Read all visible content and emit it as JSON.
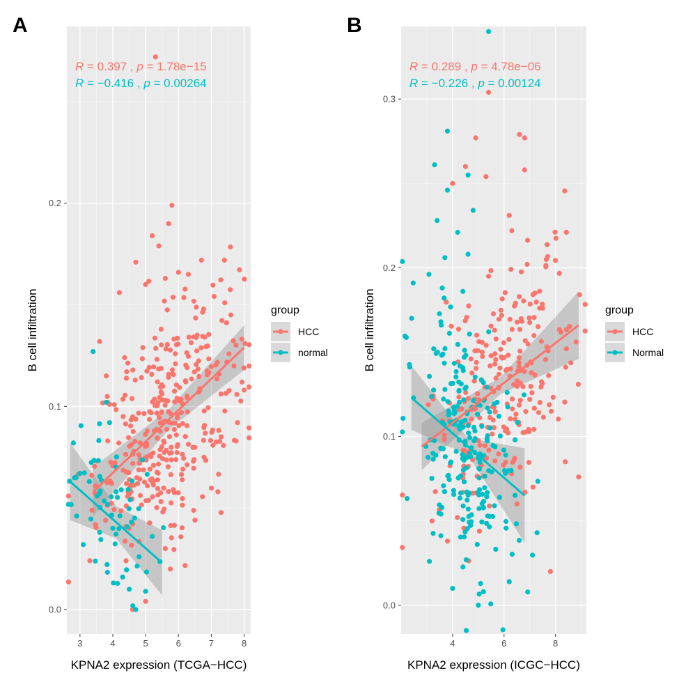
{
  "colors": {
    "HCC": "#F8766D",
    "normal": "#00BFC4",
    "panel_bg": "#EBEBEB",
    "grid": "#FFFFFF",
    "band": "#999999"
  },
  "chart_data": [
    {
      "panel": "A",
      "type": "scatter",
      "xlabel": "KPNA2 expression (TCGA−HCC)",
      "ylabel": "B cell infiltration",
      "xlim": [
        2.6,
        8.2
      ],
      "ylim": [
        -0.012,
        0.287
      ],
      "xticks": [
        3,
        4,
        5,
        6,
        7,
        8
      ],
      "yticks": [
        0.0,
        0.1,
        0.2
      ],
      "ytick_labels": [
        "0.0",
        "0.1",
        "0.2"
      ],
      "legend": {
        "title": "group",
        "entries": [
          "HCC",
          "normal"
        ],
        "position": "right"
      },
      "annotations": [
        {
          "group": "HCC",
          "R": "0.397",
          "p": "1.78e−15"
        },
        {
          "group": "normal",
          "R": "−0.416",
          "p": "0.00264"
        }
      ],
      "fits": [
        {
          "group": "HCC",
          "x": [
            3.4,
            8.0
          ],
          "y": [
            0.058,
            0.129
          ],
          "band_halfwidth": [
            0.012,
            0.005,
            0.011
          ]
        },
        {
          "group": "normal",
          "x": [
            2.7,
            5.5
          ],
          "y": [
            0.063,
            0.023
          ],
          "band_halfwidth": [
            0.019,
            0.008,
            0.016
          ]
        }
      ],
      "series": [
        {
          "name": "HCC",
          "trend": {
            "x": [
              3.4,
              8.0
            ],
            "y": [
              0.058,
              0.129
            ]
          },
          "n": 360,
          "sd": 0.026,
          "points": [
            [
              5.3,
              0.272
            ],
            [
              5.8,
              0.199
            ],
            [
              5.2,
              0.184
            ],
            [
              5.4,
              0.179
            ],
            [
              5.7,
              0.19
            ],
            [
              7.4,
              0.172
            ],
            [
              6.7,
              0.172
            ],
            [
              4.7,
              0.171
            ],
            [
              6.0,
              0.166
            ],
            [
              5.0,
              0.16
            ],
            [
              4.2,
              0.156
            ],
            [
              5.6,
              0.163
            ],
            [
              6.3,
              0.165
            ],
            [
              3.8,
              0.115
            ],
            [
              3.9,
              0.101
            ],
            [
              3.3,
              0.024
            ],
            [
              3.5,
              0.073
            ],
            [
              7.2,
              0.058
            ],
            [
              6.5,
              0.044
            ],
            [
              4.6,
              0.0
            ],
            [
              5.0,
              0.004
            ],
            [
              8.0,
              0.108
            ],
            [
              7.8,
              0.092
            ],
            [
              5.6,
              0.03
            ],
            [
              7.3,
              0.085
            ]
          ]
        },
        {
          "name": "normal",
          "trend": {
            "x": [
              2.7,
              5.5
            ],
            "y": [
              0.063,
              0.023
            ]
          },
          "n": 55,
          "sd": 0.02,
          "points": [
            [
              2.8,
              0.082
            ],
            [
              2.9,
              0.046
            ],
            [
              3.0,
              0.067
            ],
            [
              3.1,
              0.032
            ],
            [
              3.4,
              0.127
            ],
            [
              3.8,
              0.102
            ],
            [
              3.9,
              0.092
            ],
            [
              4.1,
              0.058
            ],
            [
              4.5,
              0.01
            ],
            [
              4.7,
              0.0
            ],
            [
              5.0,
              0.009
            ],
            [
              5.2,
              0.036
            ],
            [
              4.3,
              0.016
            ],
            [
              3.6,
              0.038
            ],
            [
              4.0,
              0.04
            ],
            [
              4.8,
              0.026
            ]
          ]
        }
      ]
    },
    {
      "panel": "B",
      "type": "scatter",
      "xlabel": "KPNA2 expression (ICGC−HCC)",
      "ylabel": "B cell infiltration",
      "xlim": [
        2.0,
        9.2
      ],
      "ylim": [
        -0.017,
        0.343
      ],
      "xticks": [
        4,
        6,
        8
      ],
      "yticks": [
        0.0,
        0.1,
        0.2,
        0.3
      ],
      "ytick_labels": [
        "0.0",
        "0.1",
        "0.2",
        "0.3"
      ],
      "legend": {
        "title": "group",
        "entries": [
          "HCC",
          "Normal"
        ],
        "position": "right"
      },
      "annotations": [
        {
          "group": "HCC",
          "R": "0.289",
          "p": "4.78e−06"
        },
        {
          "group": "normal",
          "R": "−0.226",
          "p": "0.00124"
        }
      ],
      "fits": [
        {
          "group": "HCC",
          "x": [
            2.8,
            8.9
          ],
          "y": [
            0.094,
            0.166
          ],
          "band_halfwidth": [
            0.014,
            0.005,
            0.02
          ]
        },
        {
          "group": "normal",
          "x": [
            2.4,
            6.8
          ],
          "y": [
            0.123,
            0.065
          ],
          "band_halfwidth": [
            0.019,
            0.005,
            0.028
          ]
        }
      ],
      "series": [
        {
          "name": "HCC",
          "trend": {
            "x": [
              2.8,
              8.9
            ],
            "y": [
              0.094,
              0.166
            ]
          },
          "n": 245,
          "sd": 0.032,
          "points": [
            [
              5.4,
              0.304
            ],
            [
              6.6,
              0.279
            ],
            [
              6.8,
              0.277
            ],
            [
              4.9,
              0.277
            ],
            [
              5.3,
              0.254
            ],
            [
              6.8,
              0.258
            ],
            [
              4.5,
              0.26
            ],
            [
              4.0,
              0.25
            ],
            [
              6.2,
              0.231
            ],
            [
              6.3,
              0.222
            ],
            [
              6.9,
              0.202
            ],
            [
              5.4,
              0.195
            ],
            [
              7.2,
              0.185
            ],
            [
              7.5,
              0.176
            ],
            [
              8.8,
              0.156
            ],
            [
              8.9,
              0.076
            ],
            [
              7.0,
              0.122
            ],
            [
              6.5,
              0.06
            ],
            [
              7.8,
              0.02
            ],
            [
              3.8,
              0.038
            ]
          ]
        },
        {
          "name": "Normal",
          "trend": {
            "x": [
              2.4,
              6.8
            ],
            "y": [
              0.123,
              0.065
            ]
          },
          "n": 230,
          "sd": 0.036,
          "points": [
            [
              5.4,
              0.34
            ],
            [
              3.8,
              0.281
            ],
            [
              3.3,
              0.261
            ],
            [
              4.6,
              0.255
            ],
            [
              3.8,
              0.246
            ],
            [
              3.4,
              0.228
            ],
            [
              4.8,
              0.234
            ],
            [
              4.2,
              0.221
            ],
            [
              4.6,
              0.208
            ],
            [
              3.7,
              0.206
            ],
            [
              3.6,
              0.188
            ],
            [
              4.4,
              0.186
            ],
            [
              5.0,
              0.0
            ],
            [
              4.0,
              0.01
            ],
            [
              3.1,
              0.026
            ],
            [
              5.2,
              0.008
            ],
            [
              6.2,
              0.014
            ],
            [
              5.8,
              0.112
            ]
          ]
        }
      ]
    }
  ],
  "panels": [
    {
      "letter": "A",
      "xlabel": "KPNA2 expression (TCGA−HCC)",
      "ylabel": "B cell infiltration",
      "xtick_labels": [
        "3",
        "4",
        "5",
        "6",
        "7",
        "8"
      ],
      "ytick_labels": [
        "0.0",
        "0.1",
        "0.2"
      ],
      "stat_lines": [
        {
          "R_label": "R",
          "p_label": "p",
          "eq": " = ",
          "R": "0.397",
          "sep": " , ",
          "p": "1.78e−15"
        },
        {
          "R_label": "R",
          "p_label": "p",
          "eq": " = ",
          "R": "−0.416",
          "sep": " , ",
          "p": "0.00264"
        }
      ],
      "legend_title": "group",
      "legend_labels": [
        "HCC",
        "normal"
      ]
    },
    {
      "letter": "B",
      "xlabel": "KPNA2 expression (ICGC−HCC)",
      "ylabel": "B cell infiltration",
      "xtick_labels": [
        "4",
        "6",
        "8"
      ],
      "ytick_labels": [
        "0.0",
        "0.1",
        "0.2",
        "0.3"
      ],
      "stat_lines": [
        {
          "R_label": "R",
          "p_label": "p",
          "eq": " = ",
          "R": "0.289",
          "sep": " , ",
          "p": "4.78e−06"
        },
        {
          "R_label": "R",
          "p_label": "p",
          "eq": " = ",
          "R": "−0.226",
          "sep": " , ",
          "p": "0.00124"
        }
      ],
      "legend_title": "group",
      "legend_labels": [
        "HCC",
        "Normal"
      ]
    }
  ]
}
